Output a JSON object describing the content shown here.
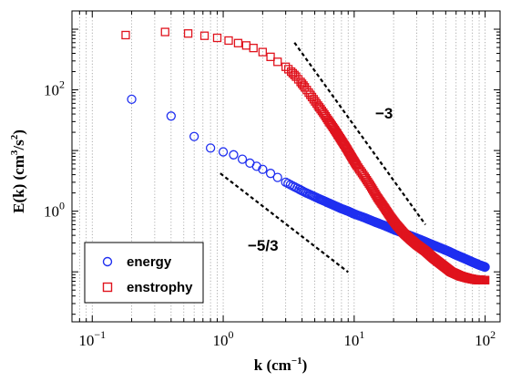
{
  "chart_data": {
    "type": "scatter",
    "title": "",
    "xlabel": "k (cm",
    "xlabel_sup": "−1",
    "xlabel_close": ")",
    "ylabel": "E(k) (cm",
    "ylabel_sup1": "3",
    "ylabel_mid": "/s",
    "ylabel_sup2": "2",
    "ylabel_close": ")",
    "xscale": "log",
    "yscale": "log",
    "xlim": [
      0.07,
      130
    ],
    "ylim": [
      0.015,
      2000
    ],
    "x_ticks": [
      {
        "value": 0.1,
        "base": "10",
        "exp": "−1"
      },
      {
        "value": 1,
        "base": "10",
        "exp": "0"
      },
      {
        "value": 10,
        "base": "10",
        "exp": "1"
      },
      {
        "value": 100,
        "base": "10",
        "exp": "2"
      }
    ],
    "y_ticks": [
      {
        "value": 1,
        "base": "10",
        "exp": "0"
      },
      {
        "value": 100,
        "base": "10",
        "exp": "2"
      }
    ],
    "grid": "vertical-minor-dotted",
    "legend_position": "bottom-left",
    "series": [
      {
        "name": "energy",
        "color": "#1f2ff0",
        "marker": "circle",
        "points": [
          [
            0.2,
            70
          ],
          [
            0.4,
            37
          ],
          [
            0.6,
            17
          ],
          [
            0.8,
            11
          ],
          [
            1,
            9.5
          ],
          [
            1.2,
            8.5
          ],
          [
            1.4,
            7.2
          ],
          [
            1.6,
            6.2
          ],
          [
            1.8,
            5.5
          ],
          [
            2.0,
            4.9
          ],
          [
            2.3,
            4.2
          ],
          [
            2.6,
            3.6
          ],
          [
            3.0,
            3.0
          ],
          [
            3.4,
            2.6
          ],
          [
            3.8,
            2.3
          ],
          [
            4.2,
            2.05
          ],
          [
            4.8,
            1.8
          ],
          [
            5.4,
            1.6
          ],
          [
            6.0,
            1.45
          ],
          [
            7.0,
            1.25
          ],
          [
            8.0,
            1.1
          ],
          [
            9.0,
            1.0
          ],
          [
            10,
            0.9
          ],
          [
            12,
            0.78
          ],
          [
            14,
            0.68
          ],
          [
            17,
            0.58
          ],
          [
            20,
            0.5
          ],
          [
            24,
            0.43
          ],
          [
            28,
            0.38
          ],
          [
            33,
            0.33
          ],
          [
            38,
            0.29
          ],
          [
            45,
            0.25
          ],
          [
            52,
            0.22
          ],
          [
            60,
            0.19
          ],
          [
            70,
            0.165
          ],
          [
            80,
            0.145
          ],
          [
            90,
            0.13
          ],
          [
            100,
            0.12
          ]
        ]
      },
      {
        "name": "enstrophy",
        "color": "#e0141e",
        "marker": "square",
        "points": [
          [
            0.18,
            800
          ],
          [
            0.36,
            900
          ],
          [
            0.54,
            850
          ],
          [
            0.72,
            780
          ],
          [
            0.9,
            720
          ],
          [
            1.1,
            650
          ],
          [
            1.3,
            590
          ],
          [
            1.5,
            540
          ],
          [
            1.7,
            490
          ],
          [
            2.0,
            420
          ],
          [
            2.3,
            350
          ],
          [
            2.6,
            290
          ],
          [
            3.0,
            240
          ],
          [
            3.3,
            200
          ],
          [
            3.6,
            165
          ],
          [
            3.9,
            135
          ],
          [
            4.2,
            110
          ],
          [
            4.5,
            90
          ],
          [
            4.9,
            70
          ],
          [
            5.3,
            55
          ],
          [
            5.8,
            42
          ],
          [
            6.3,
            32
          ],
          [
            7.0,
            23
          ],
          [
            7.8,
            16
          ],
          [
            8.6,
            11.5
          ],
          [
            9.5,
            8.0
          ],
          [
            10.5,
            5.6
          ],
          [
            12,
            3.7
          ],
          [
            13.5,
            2.5
          ],
          [
            15,
            1.7
          ],
          [
            17,
            1.15
          ],
          [
            19,
            0.8
          ],
          [
            21,
            0.6
          ],
          [
            24,
            0.43
          ],
          [
            27,
            0.34
          ],
          [
            30,
            0.28
          ],
          [
            35,
            0.22
          ],
          [
            40,
            0.17
          ],
          [
            47,
            0.13
          ],
          [
            55,
            0.1
          ],
          [
            65,
            0.085
          ],
          [
            75,
            0.078
          ],
          [
            85,
            0.074
          ],
          [
            100,
            0.073
          ]
        ]
      }
    ],
    "reference_lines": [
      {
        "label": "−3",
        "slope": -3,
        "x_start": 3.5,
        "x_end": 35,
        "y_start": 600
      },
      {
        "label": "−5/3",
        "slope": -1.6667,
        "x_start": 0.95,
        "x_end": 9,
        "y_start": 4.2
      }
    ]
  }
}
